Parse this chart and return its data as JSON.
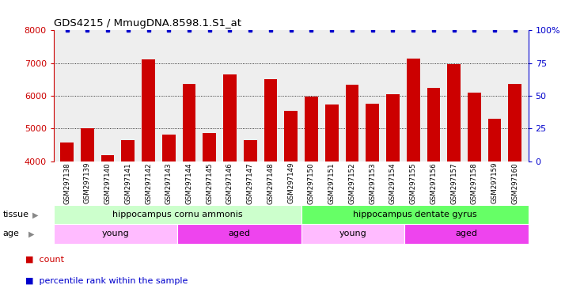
{
  "title": "GDS4215 / MmugDNA.8598.1.S1_at",
  "samples": [
    "GSM297138",
    "GSM297139",
    "GSM297140",
    "GSM297141",
    "GSM297142",
    "GSM297143",
    "GSM297144",
    "GSM297145",
    "GSM297146",
    "GSM297147",
    "GSM297148",
    "GSM297149",
    "GSM297150",
    "GSM297151",
    "GSM297152",
    "GSM297153",
    "GSM297154",
    "GSM297155",
    "GSM297156",
    "GSM297157",
    "GSM297158",
    "GSM297159",
    "GSM297160"
  ],
  "counts": [
    4560,
    5010,
    4180,
    4650,
    7120,
    4820,
    6370,
    4870,
    6650,
    4650,
    6510,
    5530,
    5970,
    5740,
    6350,
    5760,
    6050,
    7130,
    6230,
    6980,
    6100,
    5290,
    6360
  ],
  "ylim": [
    4000,
    8000
  ],
  "yticks": [
    4000,
    5000,
    6000,
    7000,
    8000
  ],
  "right_yticks": [
    0,
    25,
    50,
    75,
    100
  ],
  "bar_color": "#cc0000",
  "dot_color": "#0000cc",
  "tissue_groups": [
    {
      "label": "hippocampus cornu ammonis",
      "start": 0,
      "end": 12,
      "color": "#ccffcc"
    },
    {
      "label": "hippocampus dentate gyrus",
      "start": 12,
      "end": 23,
      "color": "#66ff66"
    }
  ],
  "age_groups": [
    {
      "label": "young",
      "start": 0,
      "end": 6,
      "color": "#ffbbff"
    },
    {
      "label": "aged",
      "start": 6,
      "end": 12,
      "color": "#ee44ee"
    },
    {
      "label": "young",
      "start": 12,
      "end": 17,
      "color": "#ffbbff"
    },
    {
      "label": "aged",
      "start": 17,
      "end": 23,
      "color": "#ee44ee"
    }
  ],
  "background_color": "#dddddd",
  "axis_color_left": "#cc0000",
  "axis_color_right": "#0000cc"
}
